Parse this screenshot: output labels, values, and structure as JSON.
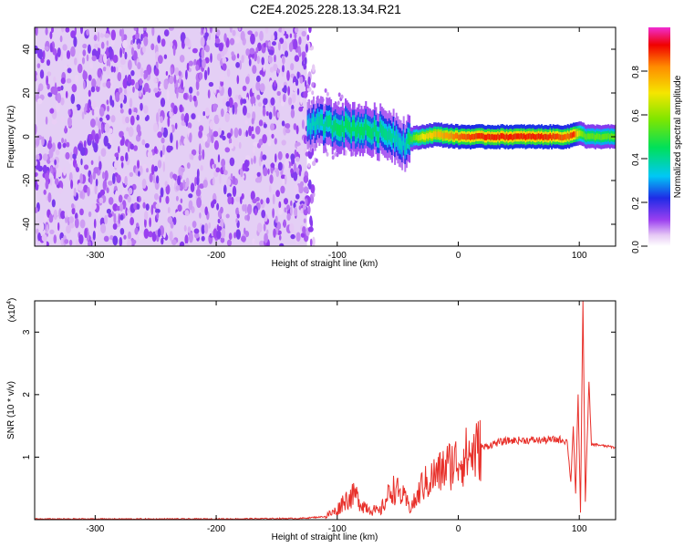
{
  "title": "C2E4.2025.228.13.34.R21",
  "chart_data": [
    {
      "type": "heatmap",
      "xlabel": "Height of straight line (km)",
      "ylabel": "Frequency (Hz)",
      "xlim": [
        -350,
        130
      ],
      "ylim": [
        -50,
        50
      ],
      "x_ticks": [
        -300,
        -200,
        -100,
        0,
        100
      ],
      "x_tick_labels": [
        "-300",
        "-200",
        "-100",
        "0",
        "100"
      ],
      "y_ticks": [
        40,
        20,
        0,
        -20,
        -40
      ],
      "y_tick_labels": [
        "40",
        "20",
        "0",
        "-20",
        "-40"
      ],
      "noise_region_x": [
        -350,
        -125
      ],
      "ridge": {
        "description_points_x": [
          -125,
          -100,
          -75,
          -55,
          -45,
          -40,
          -30,
          -20,
          0,
          20,
          50,
          70,
          90,
          95,
          100,
          105,
          130
        ],
        "center_freq": [
          6,
          5,
          3,
          1,
          -3,
          -1,
          0,
          1,
          0,
          0,
          0,
          0,
          0,
          1,
          2,
          0,
          0
        ],
        "peak_amplitude": [
          0.35,
          0.45,
          0.45,
          0.4,
          0.35,
          0.5,
          0.7,
          0.75,
          0.85,
          0.9,
          0.9,
          0.9,
          0.85,
          0.9,
          0.6,
          0.55,
          0.55
        ]
      },
      "colorbar": {
        "label": "Normalized spectral amplitude",
        "ticks": [
          0.0,
          0.2,
          0.4,
          0.6,
          0.8
        ],
        "tick_labels": [
          "0.0",
          "0.2",
          "0.4",
          "0.6",
          "0.8"
        ],
        "range": [
          0,
          1
        ]
      },
      "grid": false
    },
    {
      "type": "line",
      "xlabel": "Height of straight line (km)",
      "ylabel": "SNR (10 * v/v)",
      "y_scale_label": "(x10",
      "y_scale_exp": "4",
      "y_scale_close": ")",
      "xlim": [
        -350,
        130
      ],
      "ylim": [
        0,
        3.5
      ],
      "x_ticks": [
        -300,
        -200,
        -100,
        0,
        100
      ],
      "x_tick_labels": [
        "-300",
        "-200",
        "-100",
        "0",
        "100"
      ],
      "y_ticks": [
        1,
        2,
        3
      ],
      "y_tick_labels": [
        "1",
        "2",
        "3"
      ],
      "series": [
        {
          "color": "#e8302a",
          "x": [
            -350,
            -200,
            -130,
            -110,
            -100,
            -95,
            -90,
            -85,
            -80,
            -75,
            -70,
            -65,
            -60,
            -55,
            -50,
            -45,
            -40,
            -35,
            -30,
            -25,
            -20,
            -15,
            -10,
            -5,
            0,
            10,
            20,
            30,
            40,
            50,
            60,
            70,
            80,
            85,
            90,
            93,
            95,
            97,
            99,
            101,
            103,
            105,
            108,
            110,
            115,
            120,
            125,
            130
          ],
          "y": [
            0.01,
            0.01,
            0.02,
            0.05,
            0.15,
            0.3,
            0.35,
            0.4,
            0.25,
            0.2,
            0.15,
            0.12,
            0.3,
            0.5,
            0.45,
            0.35,
            0.2,
            0.3,
            0.55,
            0.6,
            0.7,
            0.75,
            0.85,
            0.9,
            0.95,
            1.05,
            1.15,
            1.22,
            1.26,
            1.27,
            1.27,
            1.27,
            1.28,
            1.28,
            1.25,
            0.6,
            1.5,
            0.4,
            2.0,
            0.1,
            3.5,
            0.3,
            2.2,
            1.2,
            1.2,
            1.18,
            1.17,
            1.15
          ]
        }
      ],
      "grid": false
    }
  ]
}
